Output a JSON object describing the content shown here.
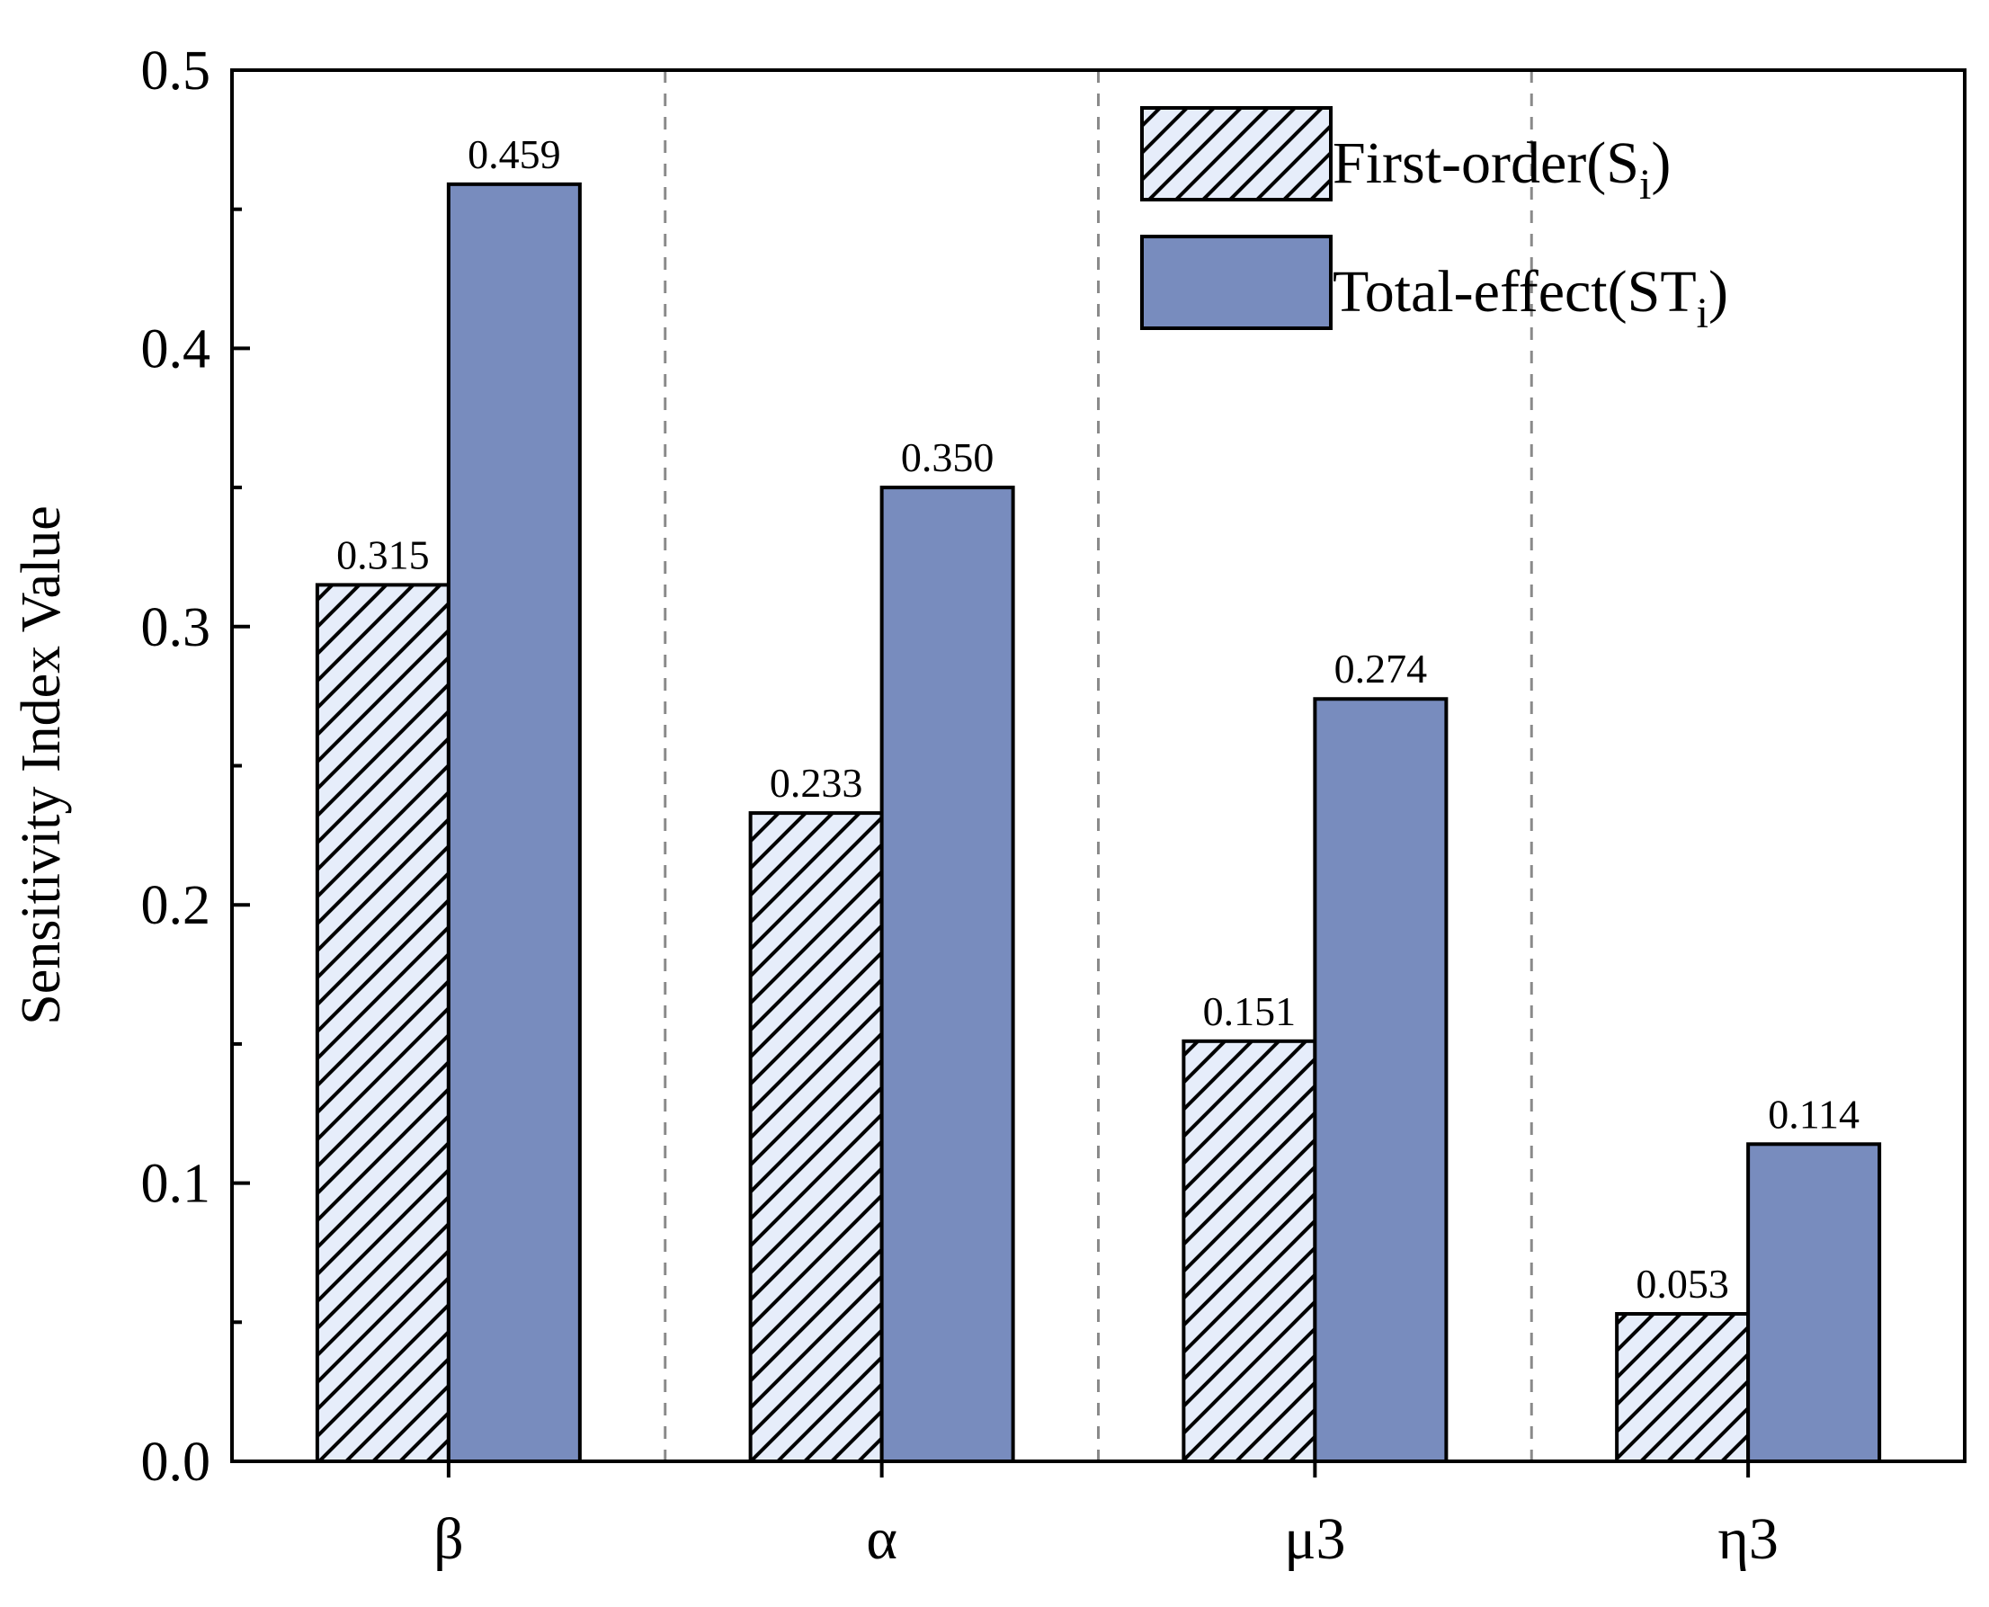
{
  "chart_data": {
    "type": "bar",
    "title": "",
    "xlabel": "",
    "ylabel": "Sensitivity Index Value",
    "ylim": [
      0,
      0.5
    ],
    "yticks": [
      "0.0",
      "0.1",
      "0.2",
      "0.3",
      "0.4",
      "0.5"
    ],
    "categories": [
      "β",
      "α",
      "μ3",
      "η3"
    ],
    "series": [
      {
        "name": "First-order(S_i)",
        "legend_main": "First-order(S",
        "legend_sub": "i",
        "legend_end": ")",
        "values": [
          0.315,
          0.233,
          0.151,
          0.053
        ],
        "labels": [
          "0.315",
          "0.233",
          "0.151",
          "0.053"
        ],
        "fill": "#e6edfa",
        "pattern": "diagonal-hatch"
      },
      {
        "name": "Total-effect(ST_i)",
        "legend_main": "Total-effect(ST",
        "legend_sub": "i",
        "legend_end": ")",
        "values": [
          0.459,
          0.35,
          0.274,
          0.114
        ],
        "labels": [
          "0.459",
          "0.350",
          "0.274",
          "0.114"
        ],
        "fill": "#788cbe",
        "pattern": "solid"
      }
    ],
    "legend_position": "top-right",
    "separators": "dashed vertical lines between categories"
  }
}
